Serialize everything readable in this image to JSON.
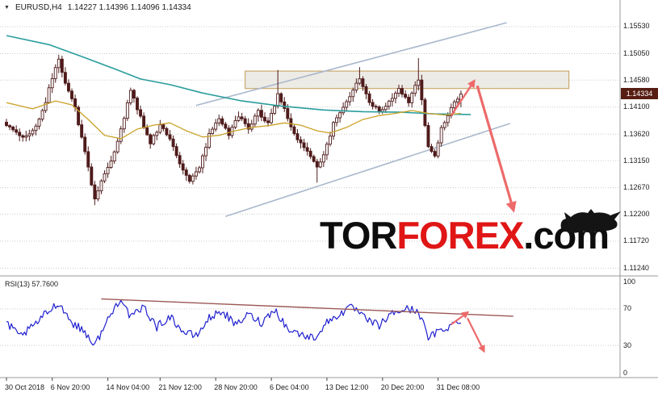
{
  "header": {
    "collapse_icon": "▼",
    "symbol": "EURUSD,H4",
    "ohlc": "1.14227 1.14396 1.14096 1.14334"
  },
  "watermark": {
    "tor": "TOR",
    "forex": "FOREX",
    "com": ".com"
  },
  "rsi_panel": {
    "label": "RSI(13) 57.7600"
  },
  "price_axis": {
    "current": "1.14334",
    "labels": [
      "1.15530",
      "1.15050",
      "1.14580",
      "1.14100",
      "1.13620",
      "1.13150",
      "1.12670",
      "1.12200",
      "1.11720",
      "1.11240"
    ]
  },
  "rsi_axis": {
    "labels": [
      "100",
      "70",
      "30",
      "0"
    ]
  },
  "time_axis": {
    "labels": [
      [
        0,
        "30 Oct 2018"
      ],
      [
        14,
        "6 Nov 20:00"
      ],
      [
        31,
        "14 Nov 04:00"
      ],
      [
        47,
        "21 Nov 12:00"
      ],
      [
        64,
        "28 Nov 20:00"
      ],
      [
        81,
        "6 Dec 04:00"
      ],
      [
        98,
        "13 Dec 12:00"
      ],
      [
        115,
        "20 Dec 20:00"
      ],
      [
        132,
        "31 Dec 08:00"
      ]
    ]
  },
  "colors": {
    "background": "#ffffff",
    "candle": "#4f1b1b",
    "bull_fill": "#ffffff",
    "ma_fast": "#c9a227",
    "ma_slow": "#2a9d9d",
    "channel": "#aab8cc",
    "arrow": "#ed6a6a",
    "rsi_line": "#1f1fd0",
    "rsi_trendline": "#9b5856",
    "zone_fill": "#e9e6df",
    "zone_border": "#c9a96e",
    "badge_bg": "#571d12",
    "grid": "#c9c9c9",
    "axis_text": "#1a1a1a",
    "watermark_red": "#e01616",
    "watermark_black": "#0d0d0d",
    "frame": "#9a9a9a"
  },
  "chart_data": [
    {
      "type": "candlestick",
      "title": "EURUSD H4",
      "ylim": [
        1.11174,
        1.15716
      ],
      "y_ticks": [
        "1.15530",
        "1.15050",
        "1.14580",
        "1.14100",
        "1.13620",
        "1.13150",
        "1.12670",
        "1.12200",
        "1.11720",
        "1.11240"
      ],
      "candle_count": 140,
      "price_path": [
        [
          0,
          1.138
        ],
        [
          3,
          1.1362
        ],
        [
          6,
          1.1357
        ],
        [
          9,
          1.1375
        ],
        [
          12,
          1.142
        ],
        [
          14,
          1.1462
        ],
        [
          16,
          1.1495
        ],
        [
          18,
          1.1455
        ],
        [
          21,
          1.1408
        ],
        [
          24,
          1.133
        ],
        [
          27,
          1.1245
        ],
        [
          30,
          1.1292
        ],
        [
          33,
          1.133
        ],
        [
          36,
          1.1392
        ],
        [
          38,
          1.1441
        ],
        [
          41,
          1.1391
        ],
        [
          44,
          1.1345
        ],
        [
          47,
          1.138
        ],
        [
          50,
          1.1356
        ],
        [
          53,
          1.131
        ],
        [
          56,
          1.1281
        ],
        [
          59,
          1.1302
        ],
        [
          62,
          1.136
        ],
        [
          65,
          1.1391
        ],
        [
          68,
          1.1361
        ],
        [
          71,
          1.1396
        ],
        [
          74,
          1.1371
        ],
        [
          77,
          1.1401
        ],
        [
          80,
          1.1381
        ],
        [
          83,
          1.1431
        ],
        [
          86,
          1.1391
        ],
        [
          89,
          1.1351
        ],
        [
          92,
          1.1331
        ],
        [
          95,
          1.1301
        ],
        [
          98,
          1.1341
        ],
        [
          100,
          1.1381
        ],
        [
          104,
          1.1421
        ],
        [
          108,
          1.1459
        ],
        [
          111,
          1.1421
        ],
        [
          114,
          1.1401
        ],
        [
          117,
          1.1421
        ],
        [
          120,
          1.1441
        ],
        [
          123,
          1.1421
        ],
        [
          126,
          1.1459
        ],
        [
          129,
          1.1341
        ],
        [
          131,
          1.1326
        ],
        [
          133,
          1.1371
        ],
        [
          136,
          1.1411
        ],
        [
          139,
          1.14334
        ]
      ],
      "wick_overrides": [
        [
          16,
          "high",
          1.1503
        ],
        [
          27,
          "low",
          1.1236
        ],
        [
          83,
          "high",
          1.1476
        ],
        [
          95,
          "low",
          1.1276
        ],
        [
          108,
          "high",
          1.1481
        ],
        [
          126,
          "high",
          1.1497
        ]
      ],
      "last_ohlc": [
        1.14227,
        1.14396,
        1.14096,
        1.14334
      ],
      "ma_slow": [
        [
          0,
          1.1537
        ],
        [
          13,
          1.1521
        ],
        [
          23,
          1.15
        ],
        [
          33,
          1.1478
        ],
        [
          41,
          1.146
        ],
        [
          50,
          1.145
        ],
        [
          60,
          1.1435
        ],
        [
          72,
          1.1421
        ],
        [
          84,
          1.1412
        ],
        [
          97,
          1.1405
        ],
        [
          109,
          1.1402
        ],
        [
          121,
          1.1401
        ],
        [
          131,
          1.1398
        ],
        [
          142,
          1.1397
        ]
      ],
      "ma_fast": [
        [
          0,
          1.1418
        ],
        [
          8,
          1.1407
        ],
        [
          15,
          1.1421
        ],
        [
          20,
          1.1414
        ],
        [
          25,
          1.1388
        ],
        [
          30,
          1.136
        ],
        [
          35,
          1.1354
        ],
        [
          40,
          1.1371
        ],
        [
          45,
          1.1378
        ],
        [
          50,
          1.1382
        ],
        [
          55,
          1.1368
        ],
        [
          60,
          1.1357
        ],
        [
          65,
          1.136
        ],
        [
          70,
          1.1368
        ],
        [
          75,
          1.1374
        ],
        [
          80,
          1.1377
        ],
        [
          85,
          1.1382
        ],
        [
          90,
          1.1378
        ],
        [
          95,
          1.1368
        ],
        [
          99,
          1.1364
        ],
        [
          104,
          1.1374
        ],
        [
          109,
          1.1388
        ],
        [
          114,
          1.1395
        ],
        [
          119,
          1.1399
        ],
        [
          124,
          1.1404
        ],
        [
          129,
          1.1399
        ],
        [
          134,
          1.1396
        ],
        [
          139,
          1.1399
        ]
      ],
      "channel_lower": [
        [
          67,
          1.1216
        ],
        [
          154,
          1.1381
        ]
      ],
      "channel_upper": [
        [
          58,
          1.1413
        ],
        [
          153,
          1.156
        ]
      ],
      "resistance_zone": {
        "from_i": 73,
        "to_i": 172,
        "top": 1.1474,
        "bottom": 1.1443
      },
      "arrows": [
        {
          "from": [
            136,
            1.1395
          ],
          "to": [
            143,
            1.1456
          ],
          "width": 2.4
        },
        {
          "from": [
            144,
            1.1448
          ],
          "to": [
            155,
            1.1228
          ],
          "width": 3.2
        }
      ]
    },
    {
      "type": "line",
      "title": "RSI(13)",
      "current_value": 57.76,
      "ylim": [
        0,
        100
      ],
      "y_ticks": [
        "100",
        "70",
        "30",
        "0"
      ],
      "levels": [
        70,
        30
      ],
      "rsi_path": [
        [
          0,
          55
        ],
        [
          4,
          40
        ],
        [
          8,
          50
        ],
        [
          12,
          65
        ],
        [
          16,
          77
        ],
        [
          20,
          55
        ],
        [
          24,
          45
        ],
        [
          27,
          30
        ],
        [
          31,
          58
        ],
        [
          35,
          83
        ],
        [
          38,
          60
        ],
        [
          42,
          72
        ],
        [
          46,
          50
        ],
        [
          50,
          62
        ],
        [
          54,
          45
        ],
        [
          58,
          40
        ],
        [
          62,
          60
        ],
        [
          66,
          68
        ],
        [
          70,
          52
        ],
        [
          74,
          64
        ],
        [
          78,
          55
        ],
        [
          82,
          70
        ],
        [
          86,
          48
        ],
        [
          90,
          42
        ],
        [
          94,
          38
        ],
        [
          98,
          55
        ],
        [
          102,
          65
        ],
        [
          106,
          72
        ],
        [
          110,
          58
        ],
        [
          114,
          52
        ],
        [
          118,
          65
        ],
        [
          122,
          70
        ],
        [
          126,
          68
        ],
        [
          129,
          38
        ],
        [
          132,
          45
        ],
        [
          136,
          52
        ],
        [
          139,
          57.76
        ]
      ],
      "trendline": {
        "from": [
          29,
          81
        ],
        "to": [
          155,
          62
        ]
      },
      "arrows": [
        {
          "from": [
            136,
            53
          ],
          "to": [
            141,
            66
          ],
          "width": 2.2
        },
        {
          "from": [
            141,
            60
          ],
          "to": [
            146,
            24
          ],
          "width": 2.2
        }
      ]
    }
  ]
}
